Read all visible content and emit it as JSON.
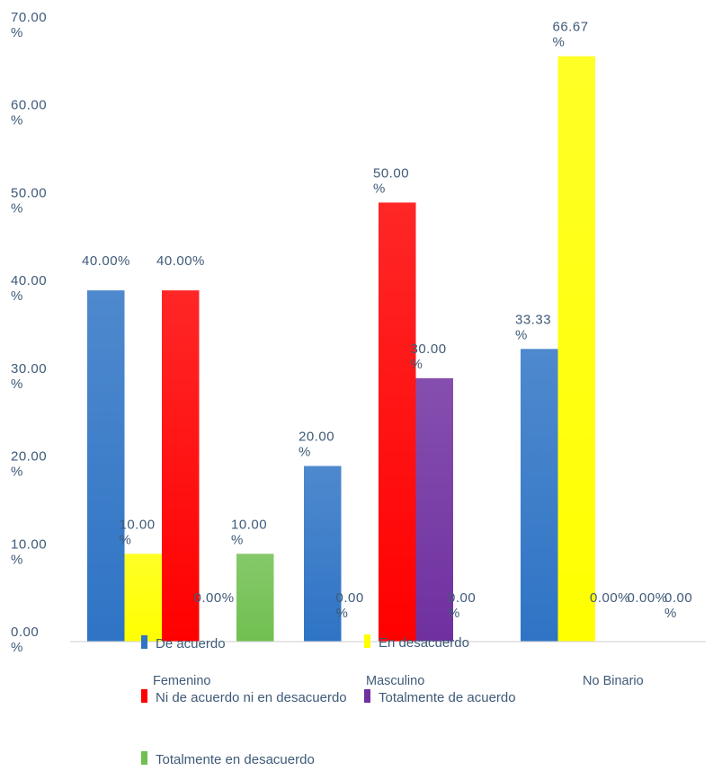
{
  "chart_data": {
    "type": "bar",
    "categories": [
      "Femenino",
      "Masculino",
      "No Binario"
    ],
    "ylim": [
      0,
      70
    ],
    "yticks": [
      "0.00 %",
      "10.00 %",
      "20.00 %",
      "30.00 %",
      "40.00 %",
      "50.00 %",
      "60.00 %",
      "70.00 %"
    ],
    "series": [
      {
        "name": "De acuerdo",
        "color": "#2f74c5",
        "values": [
          40.0,
          20.0,
          33.33
        ],
        "labels": [
          "40.00%",
          "20.00 %",
          "33.33 %"
        ]
      },
      {
        "name": "En desacuerdo",
        "color": "#ffff00",
        "values": [
          10.0,
          0.0,
          66.67
        ],
        "labels": [
          "10.00 %",
          "0.00 %",
          "66.67 %"
        ]
      },
      {
        "name": "Ni de acuerdo ni en desacuerdo",
        "color": "#ff0000",
        "values": [
          40.0,
          50.0,
          0.0
        ],
        "labels": [
          "40.00%",
          "50.00 %",
          "0.00%"
        ]
      },
      {
        "name": "Totalmente de acuerdo",
        "color": "#7030a0",
        "values": [
          0.0,
          30.0,
          0.0
        ],
        "labels": [
          "0.00%",
          "30.00 %",
          "0.00%"
        ]
      },
      {
        "name": "Totalmente en desacuerdo",
        "color": "#70c050",
        "values": [
          10.0,
          0.0,
          0.0
        ],
        "labels": [
          "10.00 %",
          "0.00 %",
          "0.00 %"
        ]
      }
    ],
    "grid": false,
    "legend_position": "bottom"
  }
}
